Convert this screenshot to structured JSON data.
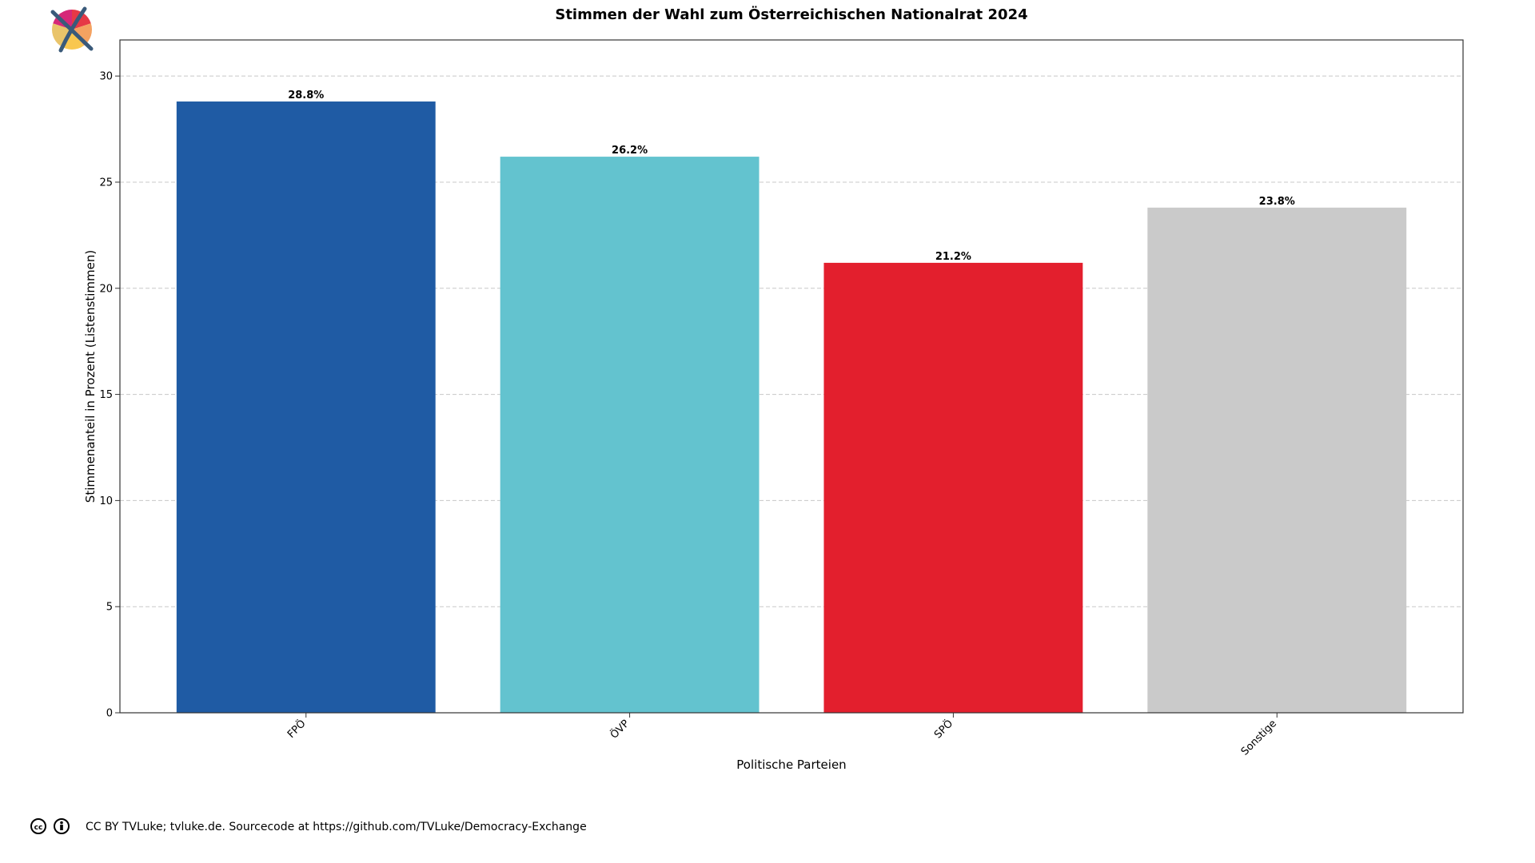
{
  "colors": {
    "background": "#ffffff",
    "grid": "#c8c8c8",
    "axis": "#333333"
  },
  "logo": {
    "icon": "ballot-cross-logo-icon",
    "colors": [
      "#e63946",
      "#f4a261",
      "#f9c74f",
      "#e9c46a",
      "#d62878"
    ],
    "cross_color": "#3a5a7a"
  },
  "footer": {
    "icons": [
      "creative-commons-icon",
      "attribution-icon"
    ],
    "text": "CC BY TVLuke; tvluke.de. Sourcecode at https://github.com/TVLuke/Democracy-Exchange"
  },
  "chart_data": {
    "type": "bar",
    "title": "Stimmen der Wahl zum Österreichischen Nationalrat 2024",
    "xlabel": "Politische Parteien",
    "ylabel": "Stimmenanteil in Prozent (Listenstimmen)",
    "categories": [
      "FPÖ",
      "ÖVP",
      "SPÖ",
      "Sonstige"
    ],
    "values": [
      28.8,
      26.2,
      21.2,
      23.8
    ],
    "value_labels": [
      "28.8%",
      "26.2%",
      "21.2%",
      "23.8%"
    ],
    "bar_colors": [
      "#1f5ba4",
      "#63c3cf",
      "#e31f2d",
      "#cacaca"
    ],
    "ylim": [
      0,
      31.7
    ],
    "yticks": [
      0,
      5,
      10,
      15,
      20,
      25,
      30
    ],
    "grid": "y-dashed",
    "legend": "none"
  }
}
